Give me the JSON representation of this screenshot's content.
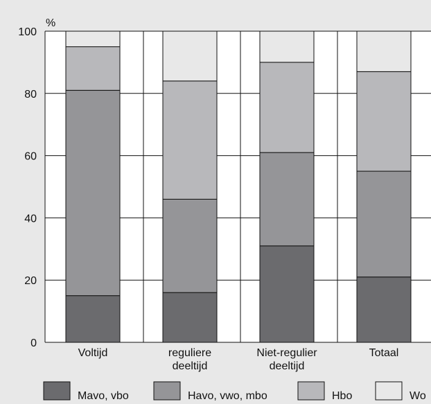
{
  "chart_data": {
    "type": "bar",
    "stacked": true,
    "unit_label": "%",
    "categories": [
      [
        "Voltijd"
      ],
      [
        "reguliere",
        "deeltijd"
      ],
      [
        "Niet-regulier",
        "deeltijd"
      ],
      [
        "Totaal"
      ]
    ],
    "series": [
      {
        "name": "Mavo, vbo",
        "color": "#6b6b6e",
        "values": [
          15,
          16,
          31,
          21
        ]
      },
      {
        "name": "Havo, vwo, mbo",
        "color": "#959598",
        "values": [
          66,
          30,
          30,
          34
        ]
      },
      {
        "name": "Hbo",
        "color": "#b8b8bb",
        "values": [
          14,
          38,
          29,
          32
        ]
      },
      {
        "name": "Wo",
        "color": "#e8e8e8",
        "values": [
          5,
          16,
          10,
          13
        ]
      }
    ],
    "ylim": [
      0,
      100
    ],
    "yticks": [
      0,
      20,
      40,
      60,
      80,
      100
    ],
    "grid": true,
    "legend": "bottom"
  }
}
